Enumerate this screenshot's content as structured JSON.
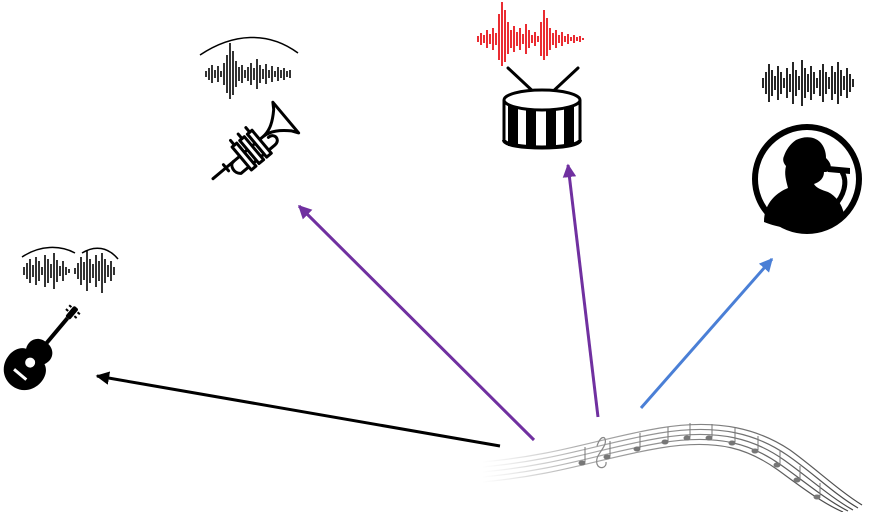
{
  "diagram": {
    "source": {
      "icon": "music-staff-icon"
    },
    "targets": [
      {
        "id": "guitar",
        "icon": "guitar-icon",
        "waveform_icon": "waveform-icon",
        "waveform_color": "#000000",
        "arrow_color": "#000000"
      },
      {
        "id": "trumpet",
        "icon": "trumpet-icon",
        "waveform_icon": "waveform-icon",
        "waveform_color": "#000000",
        "arrow_color": "#7030a0"
      },
      {
        "id": "drum",
        "icon": "drum-icon",
        "waveform_icon": "waveform-icon",
        "waveform_color": "#e8141c",
        "arrow_color": "#7030a0"
      },
      {
        "id": "singer",
        "icon": "singer-icon",
        "waveform_icon": "waveform-icon",
        "waveform_color": "#000000",
        "arrow_color": "#4a7fd6"
      }
    ]
  }
}
